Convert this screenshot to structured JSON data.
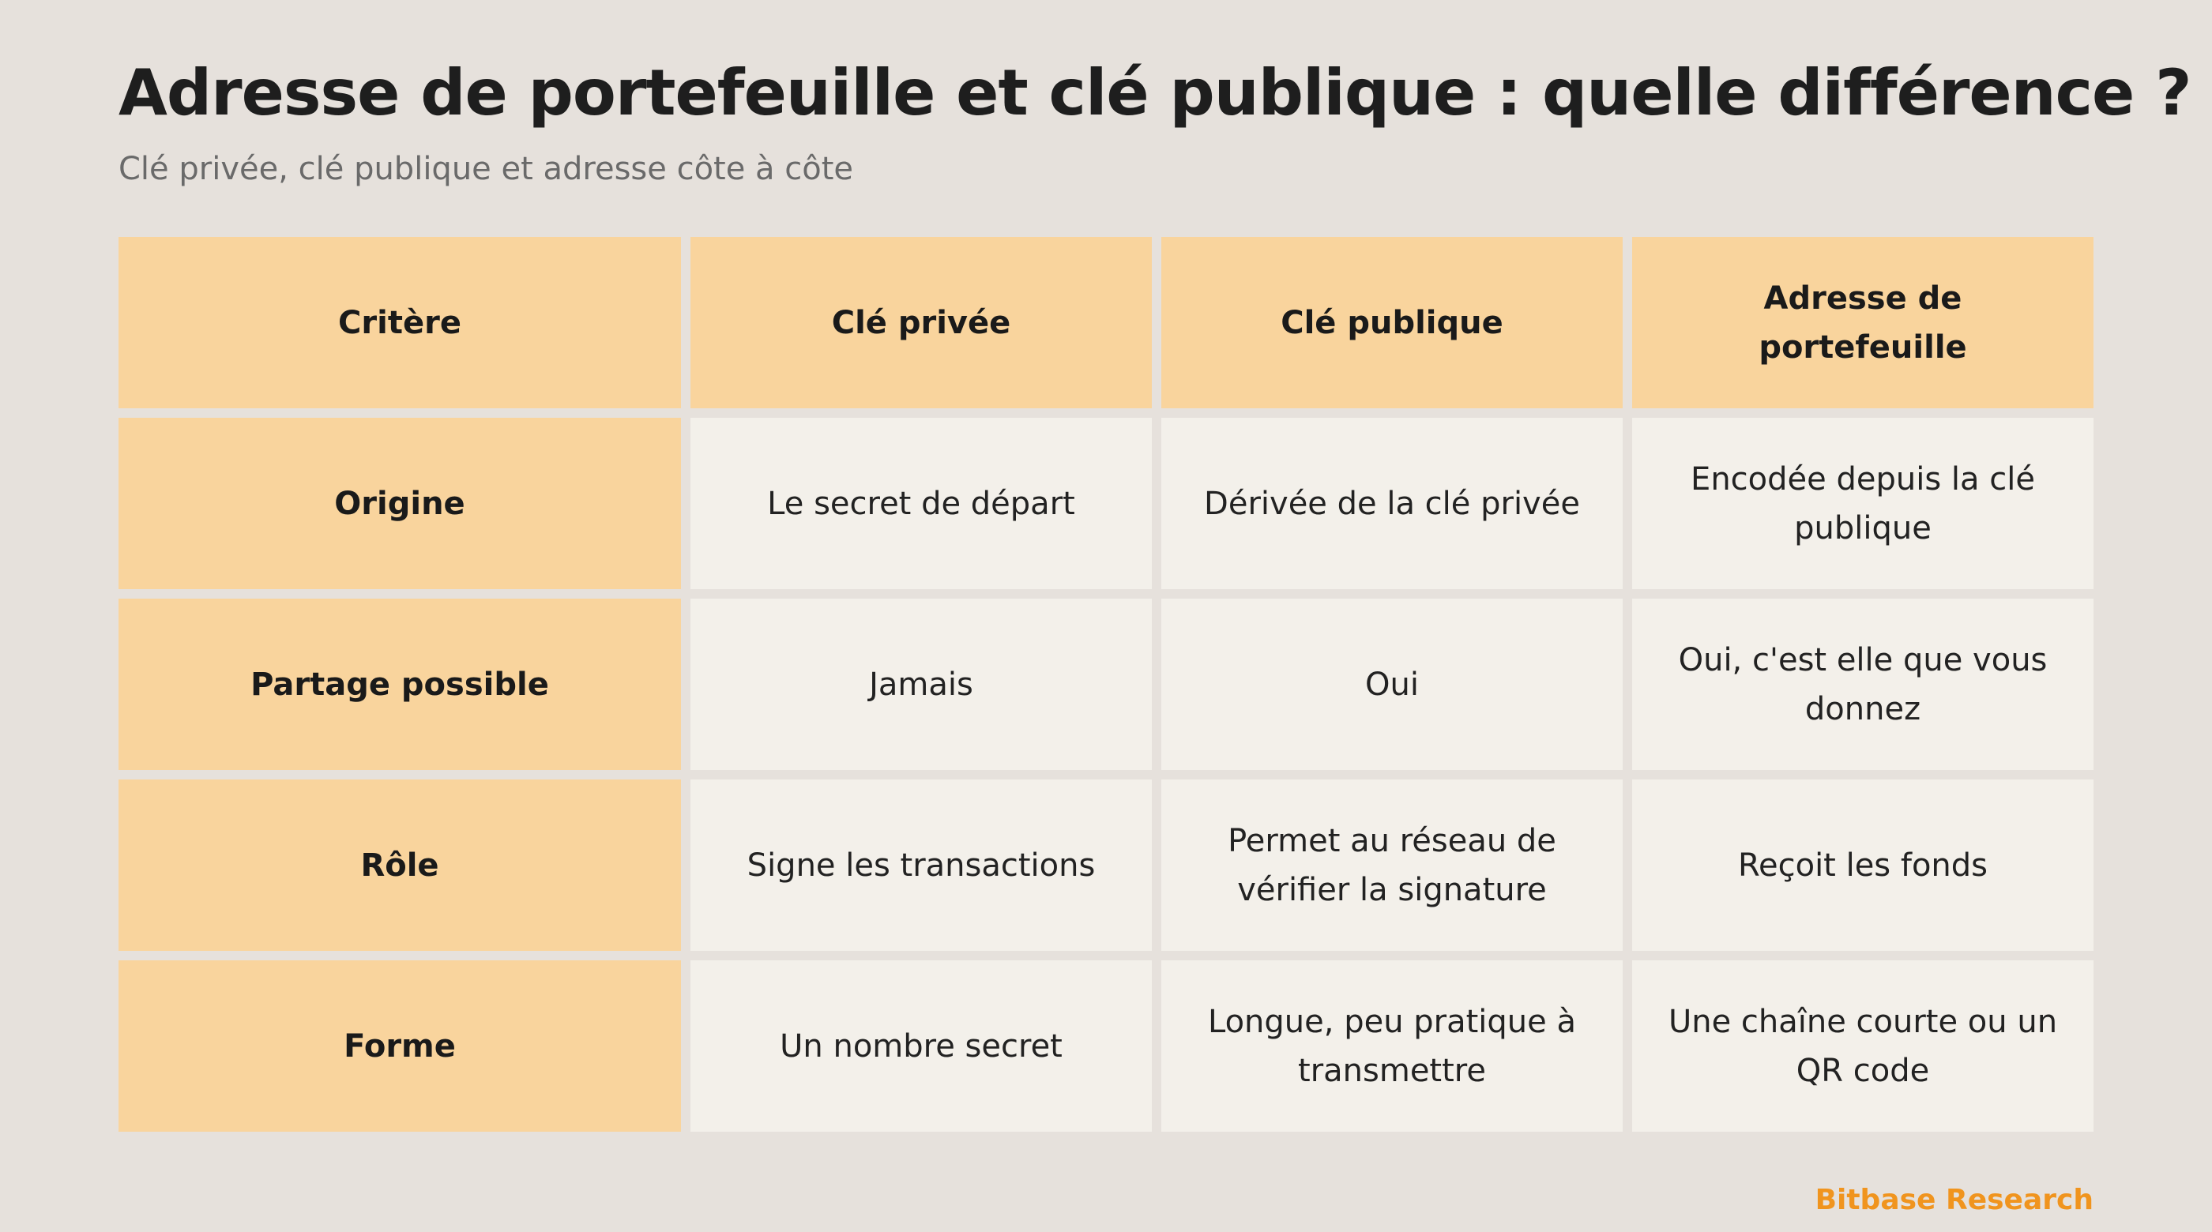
{
  "title": "Adresse de portefeuille et clé publique : quelle différence ?",
  "subtitle": "Clé privée, clé publique et adresse côte à côte",
  "table": {
    "headers": [
      "Critère",
      "Clé privée",
      "Clé publique",
      "Adresse de portefeuille"
    ],
    "rows": [
      [
        "Origine",
        "Le secret de départ",
        "Dérivée de la clé privée",
        "Encodée depuis la clé publique"
      ],
      [
        "Partage possible",
        "Jamais",
        "Oui",
        "Oui, c'est elle que vous donnez"
      ],
      [
        "Rôle",
        "Signe les transactions",
        "Permet au réseau de vérifier la signature",
        "Reçoit les fonds"
      ],
      [
        "Forme",
        "Un nombre secret",
        "Longue, peu pratique à transmettre",
        "Une chaîne courte ou un QR code"
      ]
    ]
  },
  "footer": "Bitbase Research",
  "colors": {
    "background": "#e6e1dc",
    "header_cell": "#f9d49d",
    "body_cell": "#f3f0ea",
    "brand": "#f0941e"
  }
}
